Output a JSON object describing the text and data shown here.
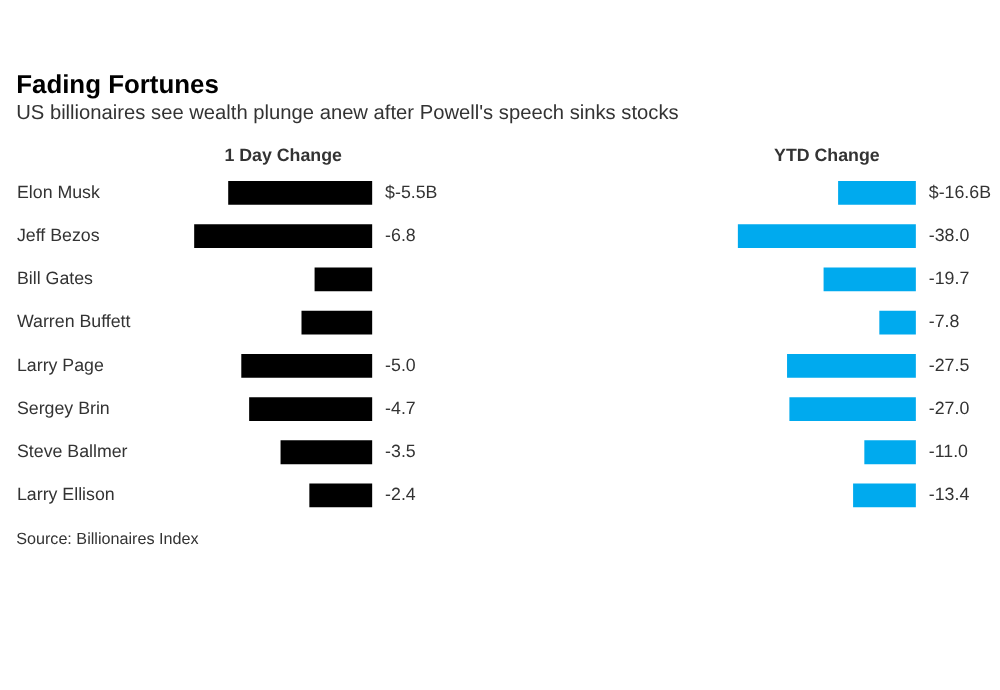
{
  "chart_data": [
    {
      "type": "bar",
      "orientation": "horizontal",
      "title": "Fading Fortunes",
      "subtitle": "US billionaires see wealth plunge anew after Powell's speech sinks stocks",
      "categories": [
        "Elon Musk",
        "Jeff Bezos",
        "Bill Gates",
        "Warren Buffett",
        "Larry Page",
        "Sergey Brin",
        "Steve Ballmer",
        "Larry Ellison"
      ],
      "series": [
        {
          "name": "1 Day Change",
          "color": "#000000",
          "values": [
            -5.5,
            -6.8,
            -2.2,
            -2.7,
            -5.0,
            -4.7,
            -3.5,
            -2.4
          ],
          "value_labels": [
            "$-5.5B",
            "-6.8",
            null,
            null,
            "-5.0",
            "-4.7",
            "-3.5",
            "-2.4"
          ]
        }
      ],
      "annotations": [
        "Source: Billionaires Index"
      ]
    },
    {
      "type": "bar",
      "orientation": "horizontal",
      "categories": [
        null,
        null,
        null,
        null,
        null,
        null,
        null,
        null
      ],
      "series": [
        {
          "name": "YTD Change",
          "color": "#00aaee",
          "values": [
            -16.6,
            -38.0,
            -19.7,
            -7.8,
            -27.5,
            -27.0,
            -11.0,
            -13.4
          ],
          "value_labels": [
            "$-16.6B",
            "-38.0",
            "-19.7",
            "-7.8",
            "-27.5",
            "-27.0",
            "-11.0",
            "-13.4"
          ]
        }
      ]
    }
  ]
}
